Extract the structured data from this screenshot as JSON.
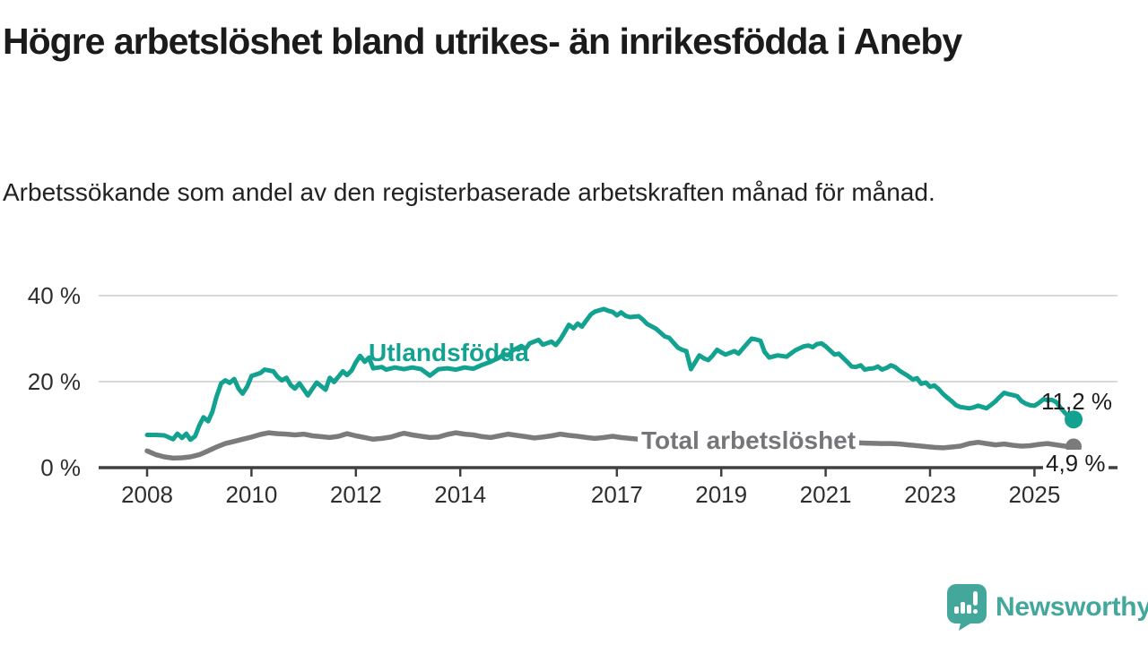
{
  "header": {
    "title": "Högre arbetslöshet bland utrikes- än inrikesfödda i Aneby",
    "subtitle": "Arbetssökande som andel av den registerbaserade arbetskraften månad för månad."
  },
  "colors": {
    "series_teal": "#12a28f",
    "series_gray": "#7b7b7d",
    "label_gray": "#76767a",
    "axis_line": "#404040",
    "gridline": "#d9d9d9",
    "text_dark": "#1c1c1c",
    "brand_teal": "#43a79c"
  },
  "chart_data": {
    "type": "line",
    "title": "Högre arbetslöshet bland utrikes- än inrikesfödda i Aneby",
    "subtitle": "Arbetssökande som andel av den registerbaserade arbetskraften månad för månad.",
    "xlabel": "",
    "ylabel": "",
    "grid": "horizontal",
    "x_range": [
      2007.8,
      2026.1
    ],
    "y_range": [
      0,
      42
    ],
    "y_ticks": [
      {
        "value": 0,
        "label": "0 %"
      },
      {
        "value": 20,
        "label": "20 %"
      },
      {
        "value": 40,
        "label": "40 %"
      }
    ],
    "x_ticks": [
      {
        "value": 2008,
        "label": "2008"
      },
      {
        "value": 2010,
        "label": "2010"
      },
      {
        "value": 2012,
        "label": "2012"
      },
      {
        "value": 2014,
        "label": "2014"
      },
      {
        "value": 2017,
        "label": "2017"
      },
      {
        "value": 2019,
        "label": "2019"
      },
      {
        "value": 2021,
        "label": "2021"
      },
      {
        "value": 2023,
        "label": "2023"
      },
      {
        "value": 2025,
        "label": "2025"
      }
    ],
    "series": [
      {
        "name": "Utlandsfödda",
        "color": "#12a28f",
        "end_label": "11,2 %",
        "end_value": 11.2,
        "points": [
          [
            2008.0,
            7.6
          ],
          [
            2008.17,
            7.6
          ],
          [
            2008.33,
            7.5
          ],
          [
            2008.5,
            6.6
          ],
          [
            2008.58,
            7.9
          ],
          [
            2008.67,
            6.9
          ],
          [
            2008.75,
            7.9
          ],
          [
            2008.83,
            6.5
          ],
          [
            2008.92,
            7.3
          ],
          [
            2009.0,
            9.8
          ],
          [
            2009.08,
            11.7
          ],
          [
            2009.17,
            10.8
          ],
          [
            2009.25,
            13.0
          ],
          [
            2009.33,
            16.5
          ],
          [
            2009.42,
            19.6
          ],
          [
            2009.5,
            20.3
          ],
          [
            2009.58,
            19.7
          ],
          [
            2009.67,
            20.6
          ],
          [
            2009.75,
            18.4
          ],
          [
            2009.83,
            17.2
          ],
          [
            2009.92,
            18.9
          ],
          [
            2010.0,
            21.3
          ],
          [
            2010.17,
            22.0
          ],
          [
            2010.25,
            22.8
          ],
          [
            2010.42,
            22.4
          ],
          [
            2010.5,
            21.1
          ],
          [
            2010.58,
            20.3
          ],
          [
            2010.67,
            20.9
          ],
          [
            2010.75,
            19.2
          ],
          [
            2010.83,
            18.4
          ],
          [
            2010.92,
            19.6
          ],
          [
            2011.08,
            16.8
          ],
          [
            2011.25,
            19.8
          ],
          [
            2011.42,
            18.1
          ],
          [
            2011.5,
            20.9
          ],
          [
            2011.58,
            19.9
          ],
          [
            2011.75,
            22.4
          ],
          [
            2011.83,
            21.5
          ],
          [
            2011.92,
            22.6
          ],
          [
            2012.0,
            24.5
          ],
          [
            2012.08,
            26.0
          ],
          [
            2012.17,
            24.6
          ],
          [
            2012.25,
            25.6
          ],
          [
            2012.33,
            23.1
          ],
          [
            2012.5,
            23.4
          ],
          [
            2012.58,
            22.8
          ],
          [
            2012.75,
            23.3
          ],
          [
            2012.92,
            22.9
          ],
          [
            2013.08,
            23.3
          ],
          [
            2013.25,
            22.9
          ],
          [
            2013.42,
            21.4
          ],
          [
            2013.58,
            22.9
          ],
          [
            2013.75,
            23.1
          ],
          [
            2013.92,
            22.8
          ],
          [
            2014.08,
            23.3
          ],
          [
            2014.25,
            23.0
          ],
          [
            2014.42,
            23.9
          ],
          [
            2014.58,
            24.6
          ],
          [
            2014.75,
            25.6
          ],
          [
            2014.83,
            26.4
          ],
          [
            2014.92,
            26.1
          ],
          [
            2015.0,
            27.2
          ],
          [
            2015.17,
            28.3
          ],
          [
            2015.25,
            27.6
          ],
          [
            2015.33,
            28.9
          ],
          [
            2015.5,
            29.7
          ],
          [
            2015.58,
            28.6
          ],
          [
            2015.75,
            29.3
          ],
          [
            2015.83,
            28.5
          ],
          [
            2015.92,
            29.9
          ],
          [
            2016.0,
            31.5
          ],
          [
            2016.08,
            33.2
          ],
          [
            2016.17,
            32.4
          ],
          [
            2016.25,
            33.5
          ],
          [
            2016.33,
            32.8
          ],
          [
            2016.42,
            34.3
          ],
          [
            2016.5,
            35.6
          ],
          [
            2016.58,
            36.3
          ],
          [
            2016.67,
            36.6
          ],
          [
            2016.75,
            36.9
          ],
          [
            2016.83,
            36.5
          ],
          [
            2016.92,
            36.2
          ],
          [
            2017.0,
            35.4
          ],
          [
            2017.08,
            36.1
          ],
          [
            2017.17,
            35.3
          ],
          [
            2017.25,
            35.0
          ],
          [
            2017.42,
            35.2
          ],
          [
            2017.5,
            34.4
          ],
          [
            2017.58,
            33.4
          ],
          [
            2017.75,
            32.3
          ],
          [
            2017.92,
            30.5
          ],
          [
            2018.0,
            30.2
          ],
          [
            2018.08,
            29.1
          ],
          [
            2018.17,
            27.9
          ],
          [
            2018.25,
            27.4
          ],
          [
            2018.33,
            27.1
          ],
          [
            2018.42,
            22.9
          ],
          [
            2018.5,
            24.5
          ],
          [
            2018.58,
            26.1
          ],
          [
            2018.67,
            25.4
          ],
          [
            2018.75,
            25.0
          ],
          [
            2018.83,
            26.0
          ],
          [
            2018.92,
            27.4
          ],
          [
            2019.0,
            26.8
          ],
          [
            2019.08,
            26.3
          ],
          [
            2019.25,
            27.1
          ],
          [
            2019.33,
            26.5
          ],
          [
            2019.5,
            28.9
          ],
          [
            2019.58,
            30.0
          ],
          [
            2019.67,
            29.8
          ],
          [
            2019.75,
            29.5
          ],
          [
            2019.83,
            26.9
          ],
          [
            2019.92,
            25.6
          ],
          [
            2020.08,
            26.1
          ],
          [
            2020.25,
            25.8
          ],
          [
            2020.42,
            27.3
          ],
          [
            2020.58,
            28.2
          ],
          [
            2020.67,
            28.4
          ],
          [
            2020.75,
            28.0
          ],
          [
            2020.83,
            28.7
          ],
          [
            2020.92,
            28.9
          ],
          [
            2021.0,
            28.2
          ],
          [
            2021.08,
            27.3
          ],
          [
            2021.17,
            26.3
          ],
          [
            2021.25,
            26.5
          ],
          [
            2021.42,
            24.5
          ],
          [
            2021.5,
            23.5
          ],
          [
            2021.58,
            23.4
          ],
          [
            2021.67,
            23.8
          ],
          [
            2021.75,
            22.8
          ],
          [
            2021.83,
            23.0
          ],
          [
            2021.92,
            23.1
          ],
          [
            2022.0,
            23.5
          ],
          [
            2022.08,
            22.8
          ],
          [
            2022.17,
            23.2
          ],
          [
            2022.25,
            23.8
          ],
          [
            2022.33,
            23.4
          ],
          [
            2022.42,
            22.5
          ],
          [
            2022.5,
            21.9
          ],
          [
            2022.58,
            21.3
          ],
          [
            2022.67,
            20.5
          ],
          [
            2022.75,
            20.8
          ],
          [
            2022.83,
            19.5
          ],
          [
            2022.92,
            19.8
          ],
          [
            2023.0,
            18.8
          ],
          [
            2023.08,
            19.1
          ],
          [
            2023.17,
            18.2
          ],
          [
            2023.25,
            17.1
          ],
          [
            2023.33,
            16.3
          ],
          [
            2023.42,
            15.4
          ],
          [
            2023.5,
            14.5
          ],
          [
            2023.58,
            14.1
          ],
          [
            2023.75,
            13.8
          ],
          [
            2023.83,
            14.0
          ],
          [
            2023.92,
            14.4
          ],
          [
            2024.0,
            14.1
          ],
          [
            2024.08,
            13.8
          ],
          [
            2024.17,
            14.6
          ],
          [
            2024.25,
            15.4
          ],
          [
            2024.33,
            16.4
          ],
          [
            2024.42,
            17.4
          ],
          [
            2024.5,
            17.1
          ],
          [
            2024.58,
            16.9
          ],
          [
            2024.67,
            16.6
          ],
          [
            2024.75,
            15.5
          ],
          [
            2024.83,
            14.9
          ],
          [
            2024.92,
            14.5
          ],
          [
            2025.0,
            14.4
          ],
          [
            2025.08,
            15.0
          ],
          [
            2025.17,
            15.9
          ],
          [
            2025.25,
            15.7
          ],
          [
            2025.33,
            15.8
          ],
          [
            2025.42,
            15.2
          ],
          [
            2025.5,
            13.9
          ],
          [
            2025.58,
            12.8
          ],
          [
            2025.67,
            11.6
          ],
          [
            2025.75,
            11.2
          ]
        ]
      },
      {
        "name": "Total arbetslöshet",
        "color": "#7b7b7d",
        "end_label": "4,9 %",
        "end_value": 4.9,
        "points": [
          [
            2008.0,
            3.9
          ],
          [
            2008.17,
            3.0
          ],
          [
            2008.33,
            2.5
          ],
          [
            2008.5,
            2.2
          ],
          [
            2008.67,
            2.3
          ],
          [
            2008.83,
            2.5
          ],
          [
            2009.0,
            3.0
          ],
          [
            2009.17,
            3.9
          ],
          [
            2009.33,
            4.8
          ],
          [
            2009.5,
            5.6
          ],
          [
            2009.67,
            6.1
          ],
          [
            2009.83,
            6.6
          ],
          [
            2010.0,
            7.1
          ],
          [
            2010.17,
            7.7
          ],
          [
            2010.33,
            8.1
          ],
          [
            2010.5,
            7.9
          ],
          [
            2010.67,
            7.8
          ],
          [
            2010.83,
            7.6
          ],
          [
            2011.0,
            7.8
          ],
          [
            2011.17,
            7.4
          ],
          [
            2011.33,
            7.2
          ],
          [
            2011.5,
            7.0
          ],
          [
            2011.67,
            7.3
          ],
          [
            2011.83,
            7.9
          ],
          [
            2012.0,
            7.4
          ],
          [
            2012.17,
            7.0
          ],
          [
            2012.33,
            6.6
          ],
          [
            2012.5,
            6.8
          ],
          [
            2012.67,
            7.1
          ],
          [
            2012.83,
            7.7
          ],
          [
            2012.92,
            8.0
          ],
          [
            2013.08,
            7.6
          ],
          [
            2013.25,
            7.3
          ],
          [
            2013.42,
            7.0
          ],
          [
            2013.58,
            7.1
          ],
          [
            2013.75,
            7.7
          ],
          [
            2013.92,
            8.1
          ],
          [
            2014.08,
            7.8
          ],
          [
            2014.25,
            7.6
          ],
          [
            2014.42,
            7.2
          ],
          [
            2014.58,
            7.0
          ],
          [
            2014.75,
            7.4
          ],
          [
            2014.92,
            7.8
          ],
          [
            2015.08,
            7.5
          ],
          [
            2015.25,
            7.2
          ],
          [
            2015.42,
            6.9
          ],
          [
            2015.58,
            7.1
          ],
          [
            2015.75,
            7.4
          ],
          [
            2015.92,
            7.8
          ],
          [
            2016.08,
            7.5
          ],
          [
            2016.25,
            7.3
          ],
          [
            2016.42,
            7.0
          ],
          [
            2016.58,
            6.8
          ],
          [
            2016.75,
            7.0
          ],
          [
            2016.92,
            7.3
          ],
          [
            2017.08,
            7.0
          ],
          [
            2017.25,
            6.8
          ],
          [
            2017.42,
            6.6
          ],
          [
            2017.75,
            6.4
          ],
          [
            2018.08,
            6.2
          ],
          [
            2018.42,
            6.0
          ],
          [
            2018.75,
            5.9
          ],
          [
            2019.08,
            5.8
          ],
          [
            2019.42,
            5.9
          ],
          [
            2019.75,
            6.0
          ],
          [
            2020.08,
            6.2
          ],
          [
            2020.42,
            6.4
          ],
          [
            2020.75,
            6.3
          ],
          [
            2021.08,
            6.1
          ],
          [
            2021.42,
            5.9
          ],
          [
            2021.75,
            5.7
          ],
          [
            2022.08,
            5.6
          ],
          [
            2022.25,
            5.6
          ],
          [
            2022.42,
            5.5
          ],
          [
            2022.58,
            5.3
          ],
          [
            2022.75,
            5.1
          ],
          [
            2022.92,
            4.9
          ],
          [
            2023.08,
            4.7
          ],
          [
            2023.25,
            4.6
          ],
          [
            2023.42,
            4.8
          ],
          [
            2023.58,
            5.0
          ],
          [
            2023.75,
            5.6
          ],
          [
            2023.92,
            5.9
          ],
          [
            2024.08,
            5.6
          ],
          [
            2024.25,
            5.3
          ],
          [
            2024.42,
            5.5
          ],
          [
            2024.58,
            5.2
          ],
          [
            2024.75,
            5.0
          ],
          [
            2024.92,
            5.1
          ],
          [
            2025.08,
            5.4
          ],
          [
            2025.25,
            5.6
          ],
          [
            2025.42,
            5.3
          ],
          [
            2025.58,
            5.0
          ],
          [
            2025.75,
            4.9
          ]
        ]
      }
    ],
    "legend_position": "inline-labels"
  },
  "footer": {
    "brand": "Newsworthy",
    "logo_icon": "bar-chart-exclamation-speech-bubble-icon"
  }
}
